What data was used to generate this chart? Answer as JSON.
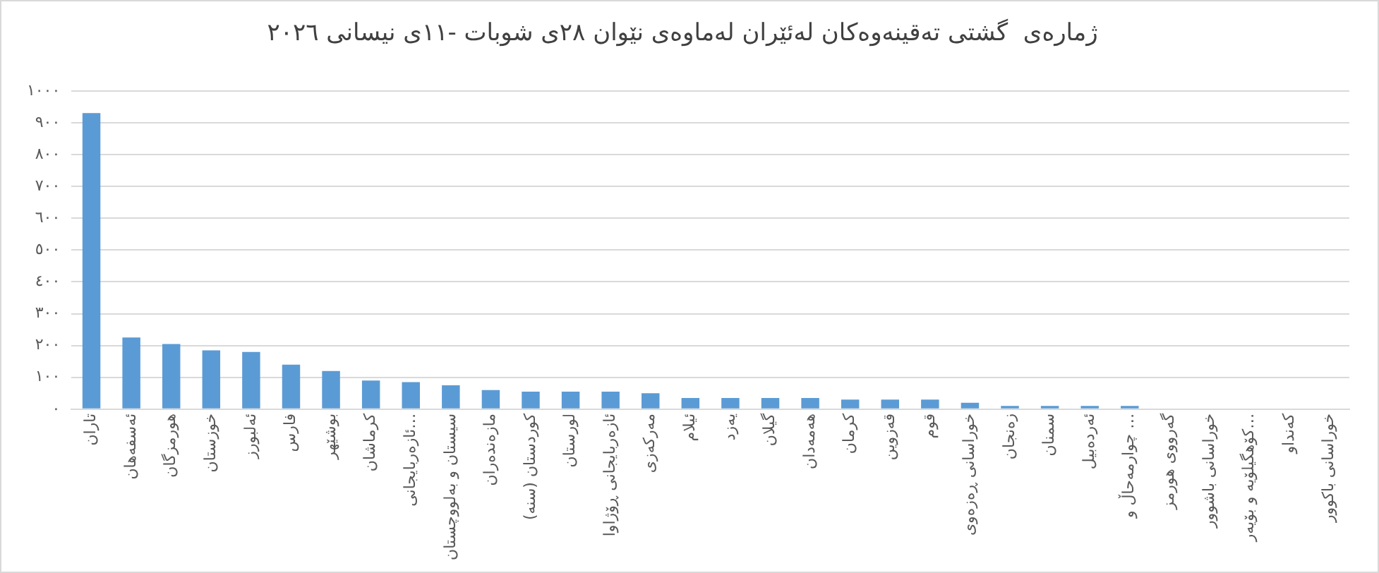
{
  "chart_data": {
    "type": "bar",
    "title": "ژمارەی  گشتی تەقینەوەکان لەئێران لەماوەی نێوان ٢٨ی شوبات -١١ی نیسانی ٢٠٢٦",
    "categories": [
      "تاران",
      "ئەسفەهان",
      "هورمزگان",
      "خوزستان",
      "ئەلبورز",
      "فارس",
      "بوشێهر",
      "کرماشان",
      "ئازەربایجانی…",
      "سیستان و بەلووچستان",
      "مازەندەران",
      "کوردستان (سنە)",
      "لورستان",
      "ئازەربایجانی ڕۆژاوا",
      "مەرکەزی",
      "ئیلام",
      "یەزد",
      "گیلان",
      "هەمەدان",
      "کرمان",
      "قەزوین",
      "قوم",
      "خوراسانی ڕەزەوی",
      "زەنجان",
      "سمنان",
      "ئەردەبیل",
      "چوارمەحاڵ و …",
      "گەرووی هورمز",
      "خوراسانی باشوور",
      "کۆهگیلۆیە و بۆیەر…",
      "کەنداو",
      "خوراسانی باکوور"
    ],
    "values": [
      930,
      225,
      205,
      185,
      180,
      140,
      120,
      90,
      85,
      75,
      60,
      55,
      55,
      55,
      50,
      35,
      35,
      35,
      35,
      30,
      30,
      30,
      20,
      10,
      10,
      10,
      10,
      0,
      0,
      0,
      0,
      0
    ],
    "color": "#5b9bd5",
    "ylim": [
      0,
      1000
    ],
    "yticks": [
      {
        "value": 0,
        "label": "٠"
      },
      {
        "value": 100,
        "label": "١٠٠"
      },
      {
        "value": 200,
        "label": "٢٠٠"
      },
      {
        "value": 300,
        "label": "٣٠٠"
      },
      {
        "value": 400,
        "label": "٤٠٠"
      },
      {
        "value": 500,
        "label": "٥٠٠"
      },
      {
        "value": 600,
        "label": "٦٠٠"
      },
      {
        "value": 700,
        "label": "٧٠٠"
      },
      {
        "value": 800,
        "label": "٨٠٠"
      },
      {
        "value": 900,
        "label": "٩٠٠"
      },
      {
        "value": 1000,
        "label": "١٠٠٠"
      }
    ],
    "grid": "y"
  }
}
